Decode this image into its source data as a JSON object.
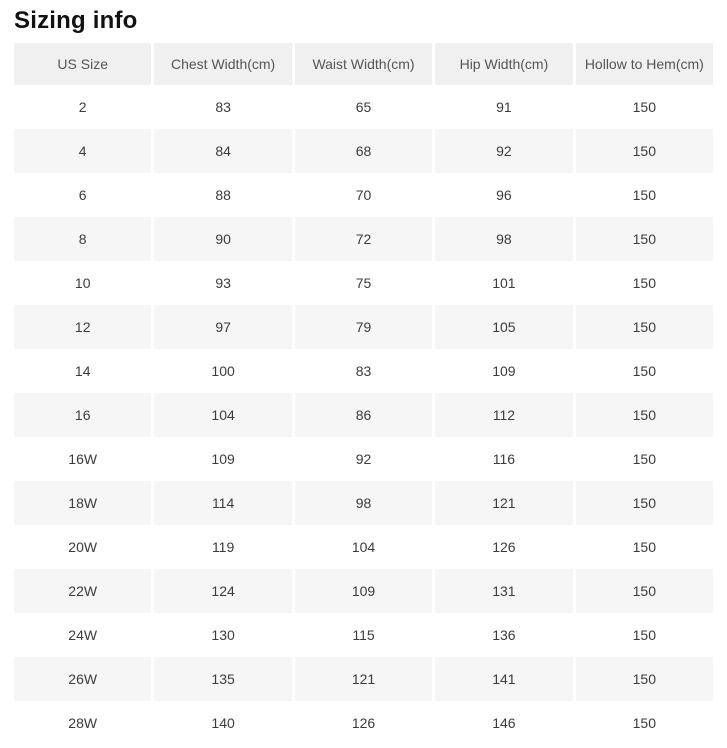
{
  "section": {
    "title": "Sizing info"
  },
  "table": {
    "columns": [
      "US Size",
      "Chest Width(cm)",
      "Waist Width(cm)",
      "Hip Width(cm)",
      "Hollow to Hem(cm)"
    ],
    "rows": [
      [
        "2",
        "83",
        "65",
        "91",
        "150"
      ],
      [
        "4",
        "84",
        "68",
        "92",
        "150"
      ],
      [
        "6",
        "88",
        "70",
        "96",
        "150"
      ],
      [
        "8",
        "90",
        "72",
        "98",
        "150"
      ],
      [
        "10",
        "93",
        "75",
        "101",
        "150"
      ],
      [
        "12",
        "97",
        "79",
        "105",
        "150"
      ],
      [
        "14",
        "100",
        "83",
        "109",
        "150"
      ],
      [
        "16",
        "104",
        "86",
        "112",
        "150"
      ],
      [
        "16W",
        "109",
        "92",
        "116",
        "150"
      ],
      [
        "18W",
        "114",
        "98",
        "121",
        "150"
      ],
      [
        "20W",
        "119",
        "104",
        "126",
        "150"
      ],
      [
        "22W",
        "124",
        "109",
        "131",
        "150"
      ],
      [
        "24W",
        "130",
        "115",
        "136",
        "150"
      ],
      [
        "26W",
        "135",
        "121",
        "141",
        "150"
      ],
      [
        "28W",
        "140",
        "126",
        "146",
        "150"
      ]
    ]
  },
  "colors": {
    "header_bg": "#f0f0f0",
    "alt_row_bg": "#f6f6f6",
    "header_text": "#555555",
    "cell_text": "#3c3c3c",
    "title_text": "#111111"
  }
}
